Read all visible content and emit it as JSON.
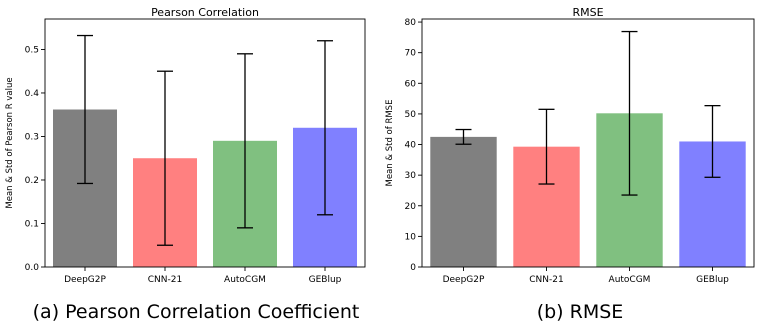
{
  "chart_data": [
    {
      "type": "bar",
      "title": "Pearson Correlation",
      "xlabel": "",
      "ylabel": "Mean & Std of Pearson R value",
      "categories": [
        "DeepG2P",
        "CNN-21",
        "AutoCGM",
        "GEBlup"
      ],
      "values": [
        0.362,
        0.25,
        0.29,
        0.32
      ],
      "error_low": [
        0.192,
        0.05,
        0.09,
        0.12
      ],
      "error_high": [
        0.532,
        0.45,
        0.49,
        0.52
      ],
      "colors": [
        "#808080",
        "#ff8080",
        "#80c080",
        "#8080ff"
      ],
      "ylim": [
        0,
        0.57
      ],
      "yticks": [
        0.0,
        0.1,
        0.2,
        0.3,
        0.4,
        0.5
      ],
      "ytick_labels": [
        "0.0",
        "0.1",
        "0.2",
        "0.3",
        "0.4",
        "0.5"
      ],
      "caption": "(a) Pearson Correlation Coefficient",
      "grid": false
    },
    {
      "type": "bar",
      "title": "RMSE",
      "xlabel": "",
      "ylabel": "Mean & Std of RMSE",
      "categories": [
        "DeepG2P",
        "CNN-21",
        "AutoCGM",
        "GEBlup"
      ],
      "values": [
        42.5,
        39.3,
        50.2,
        41.0
      ],
      "error_low": [
        40.1,
        27.1,
        23.5,
        29.3
      ],
      "error_high": [
        44.9,
        51.5,
        76.9,
        52.7
      ],
      "colors": [
        "#808080",
        "#ff8080",
        "#80c080",
        "#8080ff"
      ],
      "ylim": [
        0,
        81
      ],
      "yticks": [
        0,
        10,
        20,
        30,
        40,
        50,
        60,
        70,
        80
      ],
      "ytick_labels": [
        "0",
        "10",
        "20",
        "30",
        "40",
        "50",
        "60",
        "70",
        "80"
      ],
      "caption": "(b) RMSE",
      "grid": false
    }
  ]
}
